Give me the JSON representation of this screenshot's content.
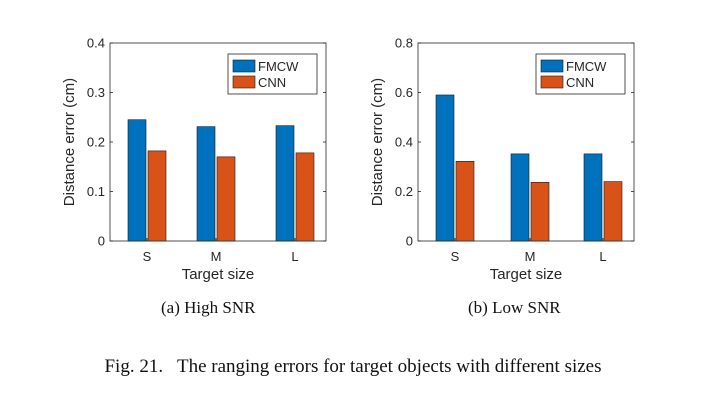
{
  "chart_data": [
    {
      "type": "bar",
      "id": "a",
      "caption": "(a)  High SNR",
      "categories": [
        "S",
        "M",
        "L"
      ],
      "series": [
        {
          "name": "FMCW",
          "color": "#0072BD",
          "values": [
            0.245,
            0.231,
            0.233
          ]
        },
        {
          "name": "CNN",
          "color": "#D95319",
          "values": [
            0.182,
            0.17,
            0.178
          ]
        }
      ],
      "xlabel": "Target size",
      "ylabel": "Distance error (cm)",
      "ylim": [
        0,
        0.4
      ],
      "yticks": [
        "0",
        "0.1",
        "0.2",
        "0.3",
        "0.4"
      ],
      "legend": "top-right",
      "grid": false
    },
    {
      "type": "bar",
      "id": "b",
      "caption": "(b)  Low SNR",
      "categories": [
        "S",
        "M",
        "L"
      ],
      "series": [
        {
          "name": "FMCW",
          "color": "#0072BD",
          "values": [
            0.59,
            0.352,
            0.352
          ]
        },
        {
          "name": "CNN",
          "color": "#D95319",
          "values": [
            0.322,
            0.237,
            0.24
          ]
        }
      ],
      "xlabel": "Target size",
      "ylabel": "Distance error (cm)",
      "ylim": [
        0,
        0.8
      ],
      "yticks": [
        "0",
        "0.2",
        "0.4",
        "0.6",
        "0.8"
      ],
      "legend": "top-right",
      "grid": false
    }
  ],
  "figure_caption": "Fig. 21.   The ranging errors for target objects with different sizes"
}
